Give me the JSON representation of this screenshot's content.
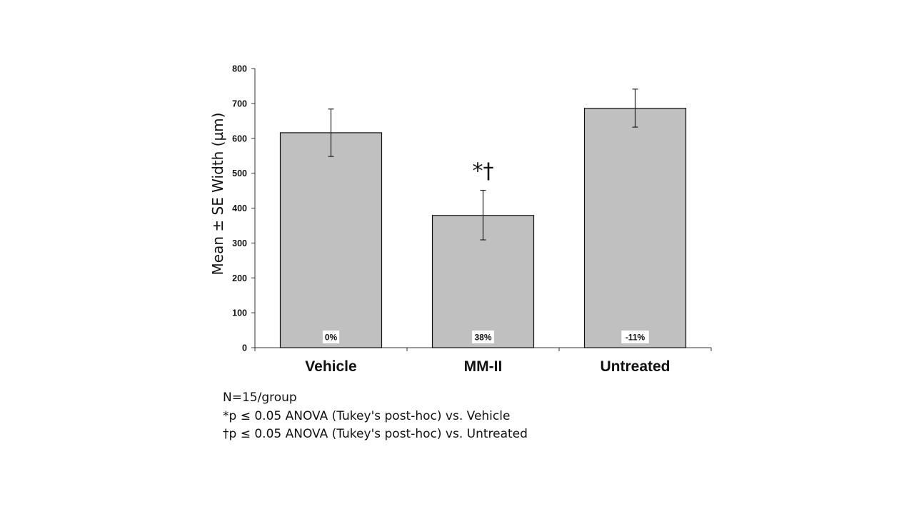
{
  "chart_data": {
    "type": "bar",
    "categories": [
      "Vehicle",
      "MM-II",
      "Untreated"
    ],
    "values": [
      616,
      379,
      686
    ],
    "errors": [
      [
        548,
        684
      ],
      [
        309,
        451
      ],
      [
        632,
        741
      ]
    ],
    "bar_labels": [
      "0%",
      "38%",
      "-11%"
    ],
    "annotations": [
      {
        "category": "MM-II",
        "text": "*†"
      }
    ],
    "ylabel": "Mean ± SE Width (µm)",
    "xlabel": "",
    "ylim": [
      0,
      800
    ],
    "yticks": [
      0,
      100,
      200,
      300,
      400,
      500,
      600,
      700,
      800
    ],
    "grid": false,
    "colors": {
      "bar_fill": "#c0c0c0",
      "bar_stroke": "#111111",
      "axis": "#333333"
    }
  },
  "notes": [
    "N=15/group",
    "*p ≤ 0.05 ANOVA (Tukey's post-hoc) vs. Vehicle",
    "†p ≤ 0.05 ANOVA (Tukey's post-hoc) vs. Untreated"
  ]
}
